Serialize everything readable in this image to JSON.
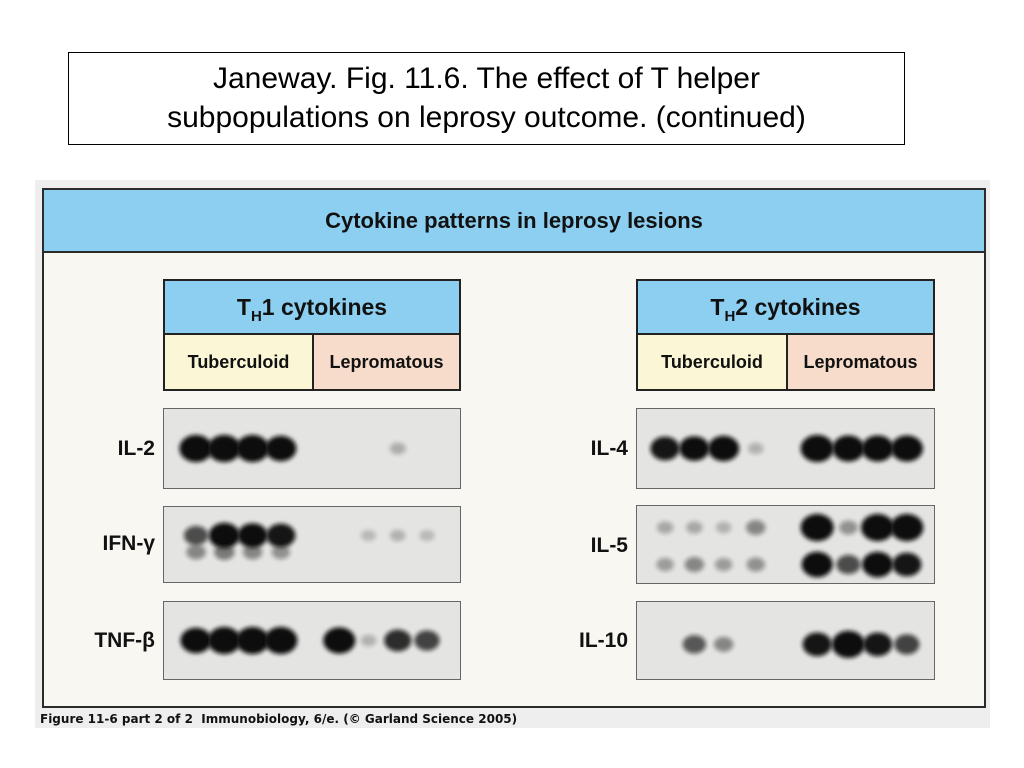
{
  "slide": {
    "title_lines": [
      "Janeway. Fig. 11.6. The effect of T helper",
      "subpopulations on leprosy outcome. (continued)"
    ]
  },
  "figure": {
    "banner": "Cytokine patterns in leprosy lesions",
    "caption": "Figure 11-6 part 2 of 2  Immunobiology, 6/e. (© Garland Science 2005)",
    "colors": {
      "banner": "#8ccff0",
      "tuberculoid": "#fbf6d6",
      "lepromatous": "#f7dccb",
      "blot_background": "#e4e4e2",
      "band": "#111111"
    },
    "panels": [
      {
        "header_prefix": "T",
        "header_sub": "H",
        "header_suffix": "1 cytokines",
        "columns": [
          "Tuberculoid",
          "Lepromatous"
        ],
        "blots": [
          {
            "label": "IL-2",
            "bands": [
              [
                1,
                1,
                1,
                0.9,
                0,
                0,
                0.12,
                0
              ]
            ]
          },
          {
            "label": "IFN-γ",
            "bands": [
              [
                0.55,
                0.9,
                0.85,
                0.8,
                0,
                0.08,
                0.1,
                0.08
              ],
              [
                0.3,
                0.35,
                0.3,
                0.25,
                0,
                0,
                0,
                0
              ]
            ]
          },
          {
            "label": "TNF-β",
            "bands": [
              [
                0.9,
                1,
                1,
                1,
                0.95,
                0.1,
                0.7,
                0.6
              ]
            ]
          }
        ]
      },
      {
        "header_prefix": "T",
        "header_sub": "H",
        "header_suffix": "2 cytokines",
        "columns": [
          "Tuberculoid",
          "Lepromatous"
        ],
        "blots": [
          {
            "label": "IL-4",
            "bands": [
              [
                0.8,
                0.85,
                0.9,
                0.1,
                1,
                0.95,
                0.95,
                0.95
              ]
            ]
          },
          {
            "label": "IL-5",
            "bands": [
              [
                0.15,
                0.15,
                0.1,
                0.3,
                1,
                0.25,
                1,
                1
              ],
              [
                0.2,
                0.3,
                0.2,
                0.25,
                0.9,
                0.55,
                0.9,
                0.8
              ]
            ]
          },
          {
            "label": "IL-10",
            "bands": [
              [
                0,
                0.5,
                0.3,
                0,
                0.8,
                1,
                0.8,
                0.6
              ]
            ]
          }
        ]
      }
    ]
  }
}
